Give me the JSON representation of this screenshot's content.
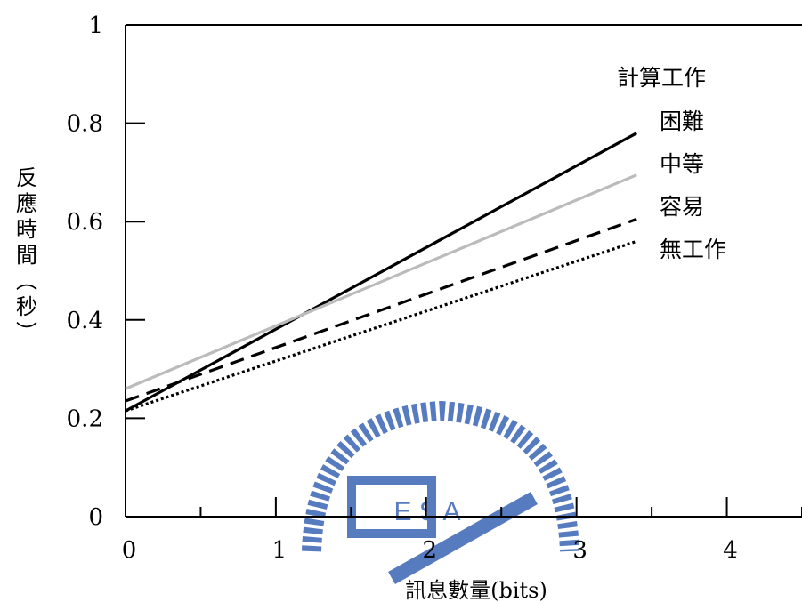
{
  "chart_data": {
    "type": "line",
    "title": "",
    "xlabel": "訊息數量(bits)",
    "ylabel_chars": [
      "反",
      "應",
      "時",
      "間",
      "︵",
      "秒",
      "︶"
    ],
    "xlim": [
      0,
      4.5
    ],
    "ylim": [
      0,
      1
    ],
    "xticks": [
      0,
      1,
      2,
      3,
      4
    ],
    "xticks_minor": [
      0.5,
      1.5,
      2.5,
      3.5,
      4.5
    ],
    "yticks": [
      {
        "value": 0,
        "label": "0"
      },
      {
        "value": 0.2,
        "label": "0.2"
      },
      {
        "value": 0.4,
        "label": "0.4"
      },
      {
        "value": 0.6,
        "label": "0.6"
      },
      {
        "value": 0.8,
        "label": "0.8"
      },
      {
        "value": 1,
        "label": "1"
      }
    ],
    "grid": false,
    "legend_title": "計算工作",
    "legend_position": "top-right",
    "series": [
      {
        "name": "困難",
        "x": [
          0,
          3.4
        ],
        "y": [
          0.215,
          0.78
        ],
        "color": "#000000",
        "dash": "solid"
      },
      {
        "name": "中等",
        "x": [
          0,
          3.4
        ],
        "y": [
          0.26,
          0.695
        ],
        "color": "#bbbbbb",
        "dash": "solid"
      },
      {
        "name": "容易",
        "x": [
          0,
          3.4
        ],
        "y": [
          0.235,
          0.605
        ],
        "color": "#000000",
        "dash": "dashed"
      },
      {
        "name": "無工作",
        "x": [
          0,
          3.4
        ],
        "y": [
          0.215,
          0.56
        ],
        "color": "#000000",
        "dash": "dotted"
      }
    ]
  },
  "watermark": {
    "text": "E S A",
    "color": "#3a64b4"
  }
}
